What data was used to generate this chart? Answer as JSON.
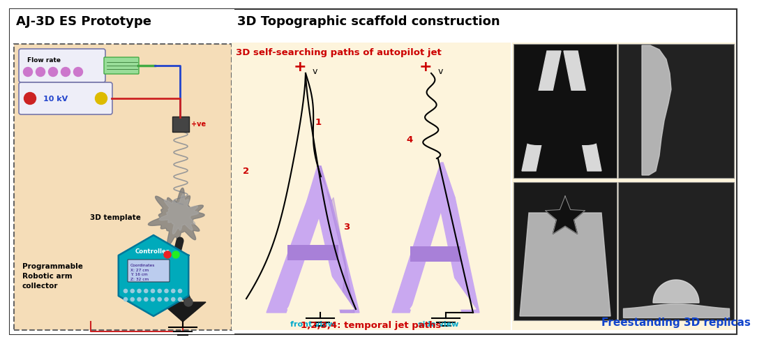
{
  "title_left": "AJ-3D ES Prototype",
  "title_right": "3D Topographic scaffold construction",
  "subtitle_middle": "3D self-searching paths of autopilot jet",
  "label_front": "front view",
  "label_side": "side view",
  "label_bottom": "1,2,3,4: temporal jet paths",
  "label_freestanding": "Freestanding 3D replicas",
  "label_3d_template": "3D template",
  "label_programmable": "Programmable\nRobotic arm\ncollector",
  "label_flow_rate": "Flow rate",
  "label_voltage": "10 kV",
  "label_controller": "Controller",
  "label_coordinates": "Coordinates\nX: 27 cm\nY: 16 cm\nZ: 32 cm",
  "label_plus_ve": "+ve",
  "bg_left": "#f5ddb8",
  "bg_middle": "#fdf4dc",
  "bg_outer": "#ffffff",
  "color_red": "#cc0000",
  "color_cyan": "#00aacc",
  "color_purple_light": "#c9a8f0",
  "color_purple_dark": "#a880d8",
  "color_blue_ctrl": "#00aabb",
  "fig_width": 10.5,
  "fig_height": 4.74
}
